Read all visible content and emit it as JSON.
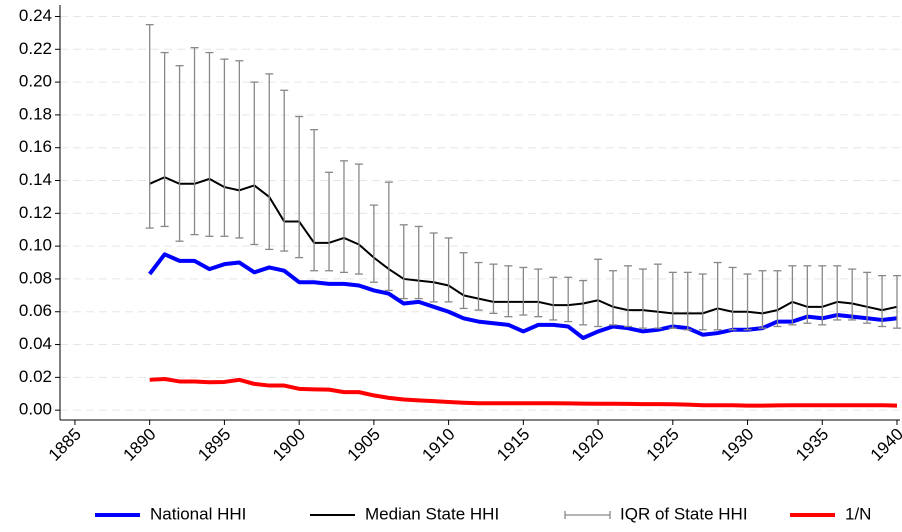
{
  "chart_data": {
    "type": "line",
    "x": [
      1890,
      1891,
      1892,
      1893,
      1894,
      1895,
      1896,
      1897,
      1898,
      1899,
      1900,
      1901,
      1902,
      1903,
      1904,
      1905,
      1906,
      1907,
      1908,
      1909,
      1910,
      1911,
      1912,
      1913,
      1914,
      1915,
      1916,
      1917,
      1918,
      1919,
      1920,
      1921,
      1922,
      1923,
      1924,
      1925,
      1926,
      1927,
      1928,
      1929,
      1930,
      1931,
      1932,
      1933,
      1934,
      1935,
      1936,
      1937,
      1938,
      1939,
      1940
    ],
    "series": [
      {
        "name": "National HHI",
        "color": "#0000ff",
        "values": [
          0.083,
          0.095,
          0.091,
          0.091,
          0.086,
          0.089,
          0.09,
          0.084,
          0.087,
          0.085,
          0.078,
          0.078,
          0.077,
          0.077,
          0.076,
          0.073,
          0.071,
          0.065,
          0.066,
          0.063,
          0.06,
          0.056,
          0.054,
          0.053,
          0.052,
          0.048,
          0.052,
          0.052,
          0.051,
          0.044,
          0.048,
          0.051,
          0.05,
          0.048,
          0.049,
          0.051,
          0.05,
          0.046,
          0.047,
          0.049,
          0.049,
          0.05,
          0.054,
          0.054,
          0.057,
          0.056,
          0.058,
          0.057,
          0.056,
          0.055,
          0.056
        ]
      },
      {
        "name": "Median State HHI",
        "color": "#000000",
        "values": [
          0.138,
          0.142,
          0.138,
          0.138,
          0.141,
          0.136,
          0.134,
          0.137,
          0.13,
          0.115,
          0.115,
          0.102,
          0.102,
          0.105,
          0.101,
          0.093,
          0.086,
          0.08,
          0.079,
          0.078,
          0.076,
          0.07,
          0.068,
          0.066,
          0.066,
          0.066,
          0.066,
          0.064,
          0.064,
          0.065,
          0.067,
          0.063,
          0.061,
          0.061,
          0.06,
          0.059,
          0.059,
          0.059,
          0.062,
          0.06,
          0.06,
          0.059,
          0.061,
          0.066,
          0.063,
          0.063,
          0.066,
          0.065,
          0.063,
          0.061,
          0.063
        ]
      },
      {
        "name": "IQR of State HHI",
        "color": "#888888",
        "low": [
          0.111,
          0.112,
          0.103,
          0.107,
          0.106,
          0.106,
          0.105,
          0.101,
          0.098,
          0.097,
          0.093,
          0.085,
          0.085,
          0.084,
          0.083,
          0.078,
          0.073,
          0.068,
          0.068,
          0.066,
          0.066,
          0.062,
          0.061,
          0.059,
          0.057,
          0.058,
          0.057,
          0.055,
          0.054,
          0.052,
          0.051,
          0.052,
          0.051,
          0.05,
          0.05,
          0.05,
          0.049,
          0.049,
          0.049,
          0.049,
          0.049,
          0.05,
          0.051,
          0.052,
          0.053,
          0.052,
          0.055,
          0.055,
          0.053,
          0.051,
          0.05
        ],
        "high": [
          0.235,
          0.218,
          0.21,
          0.221,
          0.218,
          0.214,
          0.213,
          0.2,
          0.205,
          0.195,
          0.179,
          0.171,
          0.145,
          0.152,
          0.15,
          0.125,
          0.139,
          0.113,
          0.112,
          0.108,
          0.105,
          0.096,
          0.09,
          0.089,
          0.088,
          0.087,
          0.086,
          0.081,
          0.081,
          0.079,
          0.092,
          0.085,
          0.088,
          0.086,
          0.089,
          0.084,
          0.084,
          0.083,
          0.09,
          0.087,
          0.083,
          0.085,
          0.085,
          0.088,
          0.088,
          0.088,
          0.088,
          0.086,
          0.084,
          0.082,
          0.082
        ]
      },
      {
        "name": "1/N",
        "color": "#ff0000",
        "values": [
          0.0185,
          0.019,
          0.0175,
          0.0175,
          0.017,
          0.0172,
          0.0185,
          0.016,
          0.015,
          0.015,
          0.013,
          0.0127,
          0.0125,
          0.011,
          0.011,
          0.009,
          0.0075,
          0.0065,
          0.006,
          0.0055,
          0.005,
          0.0045,
          0.0042,
          0.0042,
          0.0042,
          0.0042,
          0.0042,
          0.0042,
          0.0041,
          0.004,
          0.0039,
          0.0039,
          0.0038,
          0.0037,
          0.0037,
          0.0036,
          0.0034,
          0.003,
          0.003,
          0.003,
          0.0028,
          0.0028,
          0.0029,
          0.003,
          0.003,
          0.003,
          0.003,
          0.003,
          0.003,
          0.003,
          0.0028
        ]
      }
    ],
    "xlim": [
      1884,
      1940.2
    ],
    "xticks": [
      1885,
      1890,
      1895,
      1900,
      1905,
      1910,
      1915,
      1920,
      1925,
      1930,
      1935,
      1940
    ],
    "ylim": [
      -0.006,
      0.247
    ],
    "yticks": [
      {
        "value": 0,
        "label": "0.00"
      },
      {
        "value": 0.02,
        "label": "0.02"
      },
      {
        "value": 0.04,
        "label": "0.04"
      },
      {
        "value": 0.06,
        "label": "0.06"
      },
      {
        "value": 0.08,
        "label": "0.08"
      },
      {
        "value": 0.1,
        "label": "0.10"
      },
      {
        "value": 0.12,
        "label": "0.12"
      },
      {
        "value": 0.14,
        "label": "0.14"
      },
      {
        "value": 0.16,
        "label": "0.16"
      },
      {
        "value": 0.18,
        "label": "0.18"
      },
      {
        "value": 0.2,
        "label": "0.20"
      },
      {
        "value": 0.22,
        "label": "0.22"
      },
      {
        "value": 0.24,
        "label": "0.24"
      }
    ],
    "grid": true,
    "legend": "bottom"
  }
}
